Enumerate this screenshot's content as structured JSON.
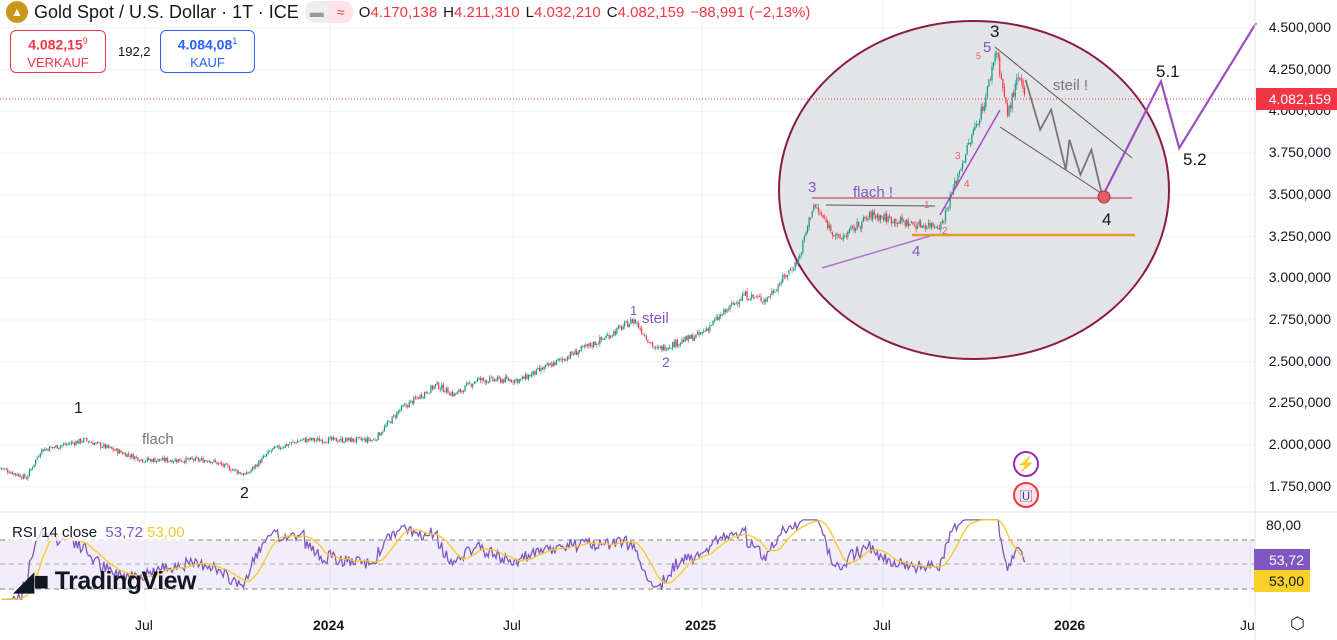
{
  "header": {
    "title": "Gold Spot / U.S. Dollar · 1T · ICE",
    "open_label": "O",
    "open": "4.170,138",
    "high_label": "H",
    "high": "4.211,310",
    "low_label": "L",
    "low": "4.032,210",
    "close_label": "C",
    "close": "4.082,159",
    "change": "−88,991 (−2,13%)"
  },
  "trade": {
    "sell_price": "4.082,15",
    "sell_sup": "9",
    "sell_label": "VERKAUF",
    "spread": "192,2",
    "buy_price": "4.084,08",
    "buy_sup": "1",
    "buy_label": "KAUF"
  },
  "price_axis": {
    "ticks": [
      "4.500,000",
      "4.250,000",
      "4.000,000",
      "3.750,000",
      "3.500,000",
      "3.250,000",
      "3.000,000",
      "2.750,000",
      "2.500,000",
      "2.250,000",
      "2.000,000",
      "1.750,000"
    ],
    "current": "4.082,159"
  },
  "time_axis": [
    "Jul",
    "2024",
    "Jul",
    "2025",
    "Jul",
    "2026",
    "Ju"
  ],
  "rsi": {
    "legend": "RSI 14 close",
    "value": "53,72",
    "ma": "53,00",
    "axis_top": "80,00"
  },
  "watermark": "TradingView",
  "colors": {
    "up": "#089981",
    "down": "#f23645",
    "rsi": "#7e57c2",
    "rsi_ma": "#f7c928",
    "circle": "#8b1a4a",
    "forecast": "#9c4fc4"
  },
  "annotations": [
    "1",
    "flach",
    "2",
    "1",
    "steil",
    "2",
    "3",
    "flach !",
    "4",
    "3",
    "5",
    "5",
    "3",
    "4",
    "2",
    "1",
    "steil !",
    "4",
    "5.1",
    "5.2"
  ],
  "chart_data": {
    "type": "candlestick",
    "title": "Gold Spot / U.S. Dollar",
    "ylim": [
      1650,
      4600
    ],
    "yticks": [
      4500,
      4250,
      4000,
      3750,
      3500,
      3250,
      3000,
      2750,
      2500,
      2250,
      2000,
      1750
    ],
    "path": [
      [
        2023.1,
        1862
      ],
      [
        2023.17,
        1802
      ],
      [
        2023.21,
        1970
      ],
      [
        2023.33,
        2030
      ],
      [
        2023.49,
        1910
      ],
      [
        2023.67,
        1910
      ],
      [
        2023.77,
        1820
      ],
      [
        2023.84,
        1970
      ],
      [
        2023.92,
        2030
      ],
      [
        2024.0,
        2030
      ],
      [
        2024.12,
        2030
      ],
      [
        2024.19,
        2210
      ],
      [
        2024.29,
        2360
      ],
      [
        2024.34,
        2300
      ],
      [
        2024.4,
        2390
      ],
      [
        2024.52,
        2390
      ],
      [
        2024.63,
        2510
      ],
      [
        2024.74,
        2630
      ],
      [
        2024.83,
        2750
      ],
      [
        2024.89,
        2570
      ],
      [
        2025.01,
        2660
      ],
      [
        2025.13,
        2900
      ],
      [
        2025.19,
        2870
      ],
      [
        2025.28,
        3110
      ],
      [
        2025.32,
        3440
      ],
      [
        2025.39,
        3230
      ],
      [
        2025.48,
        3380
      ],
      [
        2025.6,
        3320
      ],
      [
        2025.67,
        3320
      ],
      [
        2025.72,
        3650
      ],
      [
        2025.79,
        4070
      ],
      [
        2025.82,
        4380
      ],
      [
        2025.85,
        3980
      ],
      [
        2025.88,
        4200
      ],
      [
        2025.9,
        4082
      ]
    ],
    "forecast_gray": [
      [
        2025.9,
        4190
      ],
      [
        2025.94,
        3890
      ],
      [
        2025.97,
        4010
      ],
      [
        2026.01,
        3650
      ],
      [
        2026.02,
        3830
      ],
      [
        2026.05,
        3620
      ],
      [
        2026.08,
        3770
      ],
      [
        2026.11,
        3490
      ]
    ],
    "forecast_purple": [
      [
        2026.11,
        3490
      ],
      [
        2026.27,
        4180
      ],
      [
        2026.32,
        3780
      ],
      [
        2026.53,
        4530
      ]
    ],
    "rsi_ylim": [
      20,
      85
    ]
  }
}
